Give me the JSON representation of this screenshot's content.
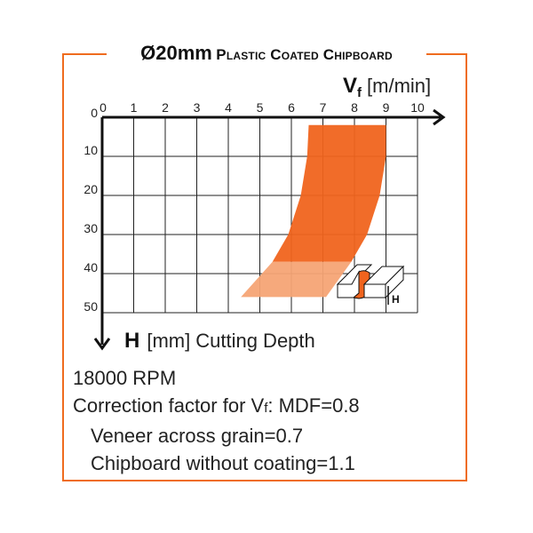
{
  "title": {
    "size": "Ø20mm",
    "material": "Plastic Coated Chipboard"
  },
  "colors": {
    "frame": "#ef6c1e",
    "band_dark": "#f0641e",
    "band_light": "#f5a475",
    "band_lighter": "#f9c9a8"
  },
  "chart_data": {
    "type": "area",
    "x_axis": {
      "symbol": "V",
      "subscript": "f",
      "unit": "[m/min]",
      "ticks": [
        "0",
        "1",
        "2",
        "3",
        "4",
        "5",
        "6",
        "7",
        "8",
        "9",
        "10"
      ],
      "range": [
        0,
        10
      ],
      "position": "top"
    },
    "y_axis": {
      "symbol": "H",
      "unit": "[mm]",
      "name": "Cutting Depth",
      "ticks": [
        "0",
        "10",
        "20",
        "30",
        "40",
        "50"
      ],
      "range": [
        0,
        50
      ],
      "inverted": true
    },
    "grid": true,
    "bands": [
      {
        "shade": "dark",
        "left_edge": [
          [
            6.55,
            2
          ],
          [
            6.5,
            10
          ],
          [
            6.3,
            20
          ],
          [
            5.9,
            30
          ],
          [
            5.4,
            37
          ]
        ],
        "right_edge": [
          [
            9.0,
            2
          ],
          [
            9.0,
            10
          ],
          [
            8.8,
            20
          ],
          [
            8.4,
            30
          ],
          [
            7.9,
            37
          ]
        ]
      },
      {
        "shade": "light",
        "left_edge": [
          [
            5.4,
            37
          ],
          [
            4.4,
            46
          ]
        ],
        "right_edge": [
          [
            7.9,
            37
          ],
          [
            7.1,
            46
          ]
        ]
      }
    ],
    "inset_label": "H"
  },
  "notes": {
    "rpm": "18000 RPM",
    "correction_prefix": "Correction factor for V",
    "correction_sub": "f",
    "correction_suffix": ": MDF=0.8",
    "veneer": "Veneer across grain=0.7",
    "chipboard": "Chipboard without coating=1.1"
  }
}
